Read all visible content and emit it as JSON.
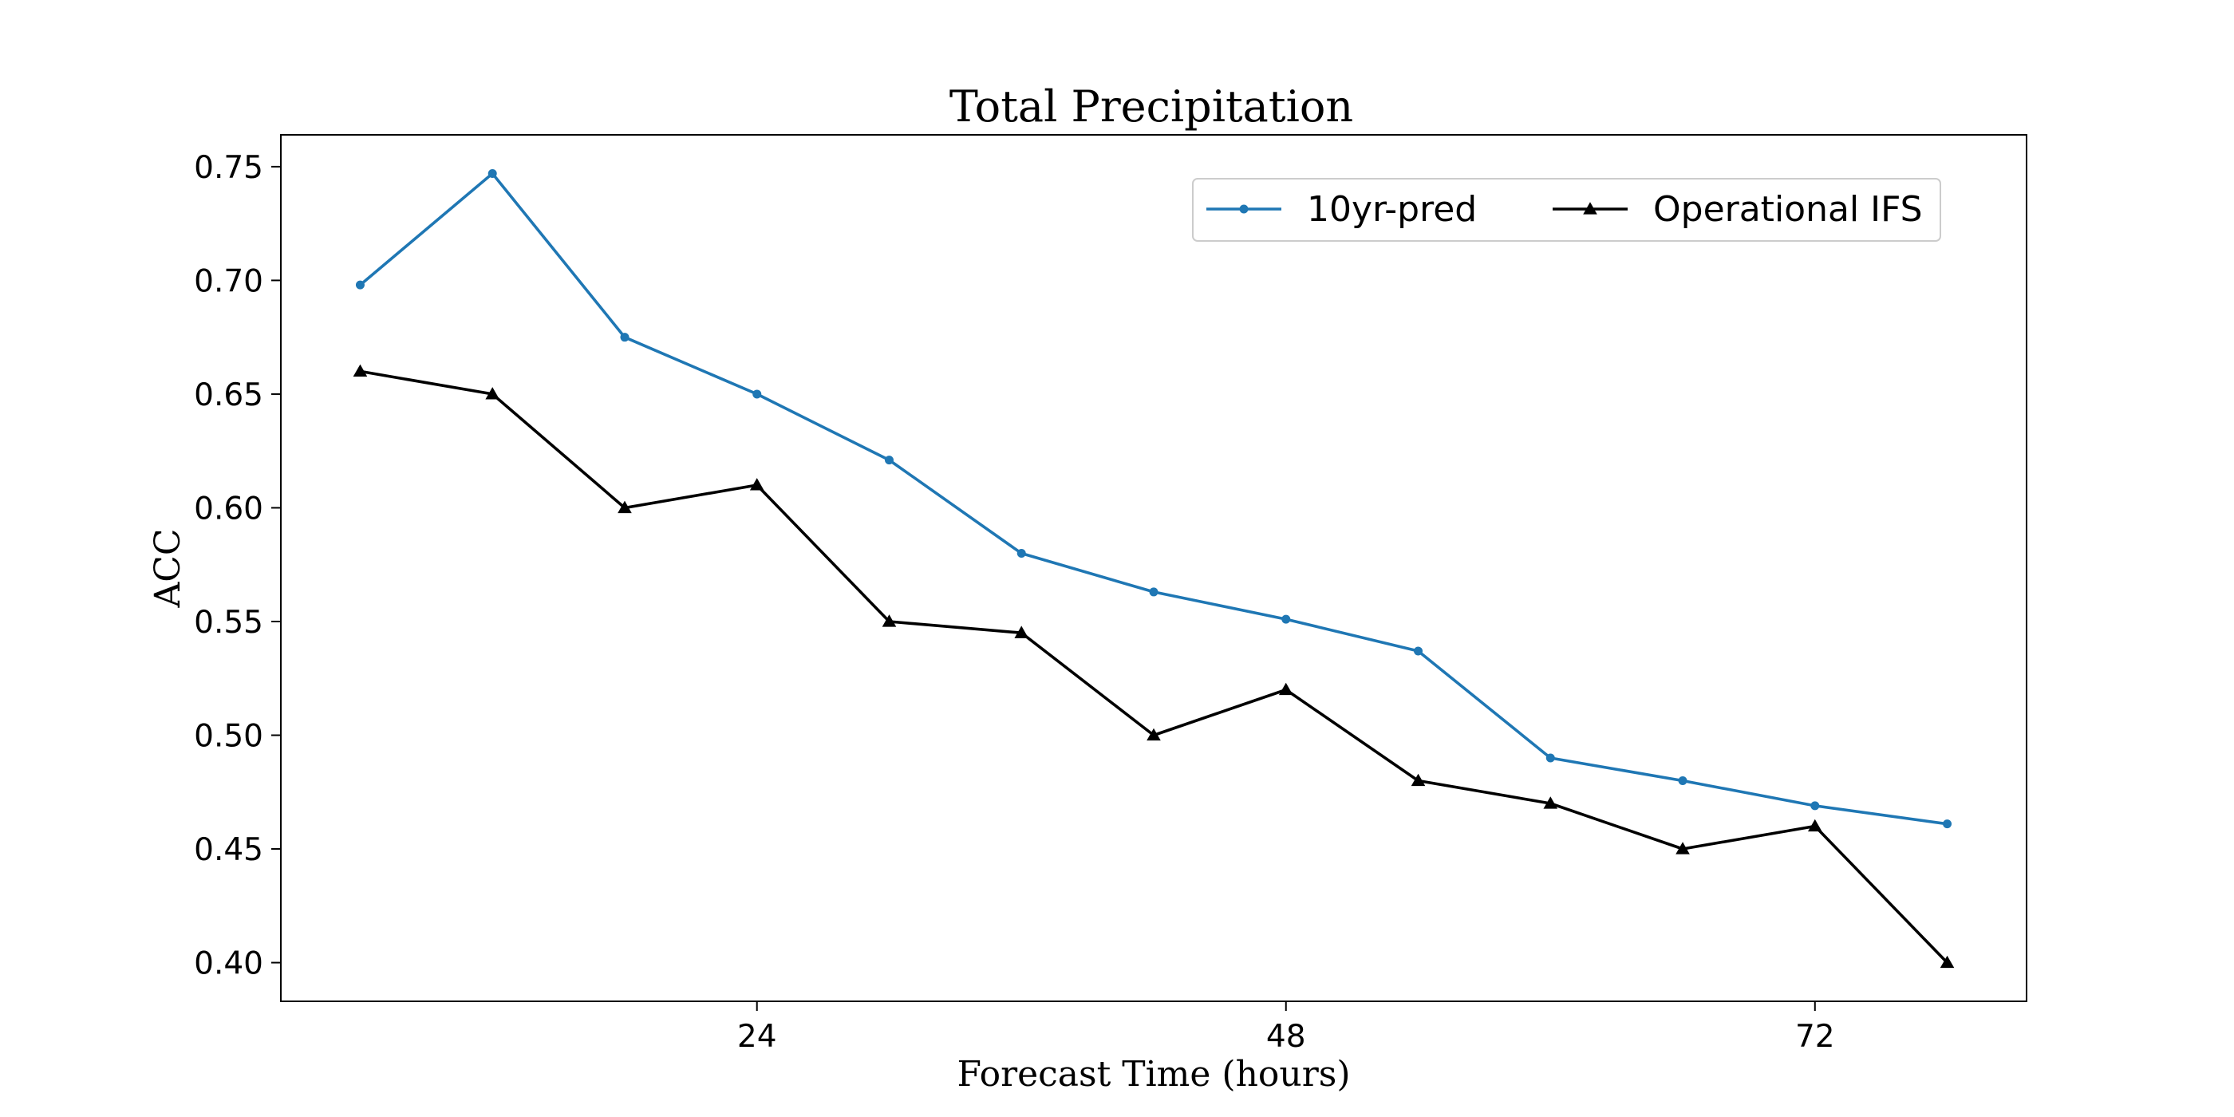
{
  "chart_data": {
    "type": "line",
    "title": "Total Precipitation",
    "xlabel": "Forecast Time (hours)",
    "ylabel": "ACC",
    "x": [
      6,
      12,
      18,
      24,
      30,
      36,
      42,
      48,
      54,
      60,
      66,
      72,
      78
    ],
    "series": [
      {
        "name": "10yr-pred",
        "color": "#1f77b4",
        "marker": "circle",
        "values": [
          0.698,
          0.747,
          0.675,
          0.65,
          0.621,
          0.58,
          0.563,
          0.551,
          0.537,
          0.49,
          0.48,
          0.469,
          0.461
        ]
      },
      {
        "name": "Operational IFS",
        "color": "#000000",
        "marker": "triangle",
        "values": [
          0.66,
          0.65,
          0.6,
          0.61,
          0.55,
          0.545,
          0.5,
          0.52,
          0.48,
          0.47,
          0.45,
          0.46,
          0.4
        ]
      }
    ],
    "xticks": [
      24,
      48,
      72
    ],
    "yticks": [
      0.4,
      0.45,
      0.5,
      0.55,
      0.6,
      0.65,
      0.7,
      0.75
    ],
    "xlim": [
      2.4,
      81.6
    ],
    "ylim": [
      0.383,
      0.764
    ],
    "legend_position": "top-right",
    "grid": false
  }
}
